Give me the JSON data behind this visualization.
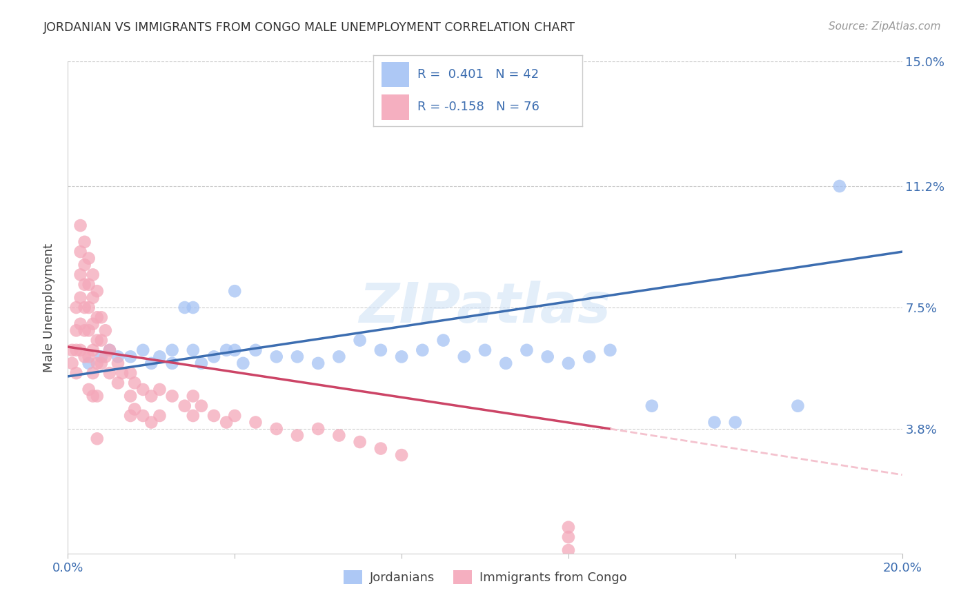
{
  "title": "JORDANIAN VS IMMIGRANTS FROM CONGO MALE UNEMPLOYMENT CORRELATION CHART",
  "source": "Source: ZipAtlas.com",
  "ylabel": "Male Unemployment",
  "xlim": [
    0.0,
    0.2
  ],
  "ylim": [
    0.0,
    0.15
  ],
  "yticks": [
    0.038,
    0.075,
    0.112,
    0.15
  ],
  "ytick_labels": [
    "3.8%",
    "7.5%",
    "11.2%",
    "15.0%"
  ],
  "xticks": [
    0.0,
    0.04,
    0.08,
    0.12,
    0.16,
    0.2
  ],
  "xtick_labels": [
    "0.0%",
    "",
    "",
    "",
    "",
    "20.0%"
  ],
  "blue_color": "#a4c2f4",
  "pink_color": "#f4a7b9",
  "blue_line_color": "#3c6db0",
  "pink_line_color": "#cc4466",
  "pink_dash_color": "#f4c2ce",
  "legend_R_blue": "0.401",
  "legend_N_blue": "42",
  "legend_R_pink": "-0.158",
  "legend_N_pink": "76",
  "legend_label_blue": "Jordanians",
  "legend_label_pink": "Immigrants from Congo",
  "watermark": "ZIPatlas",
  "blue_scatter": [
    [
      0.005,
      0.058
    ],
    [
      0.008,
      0.06
    ],
    [
      0.01,
      0.062
    ],
    [
      0.012,
      0.06
    ],
    [
      0.015,
      0.06
    ],
    [
      0.018,
      0.062
    ],
    [
      0.02,
      0.058
    ],
    [
      0.022,
      0.06
    ],
    [
      0.025,
      0.062
    ],
    [
      0.025,
      0.058
    ],
    [
      0.028,
      0.075
    ],
    [
      0.03,
      0.075
    ],
    [
      0.03,
      0.062
    ],
    [
      0.032,
      0.058
    ],
    [
      0.035,
      0.06
    ],
    [
      0.038,
      0.062
    ],
    [
      0.04,
      0.08
    ],
    [
      0.04,
      0.062
    ],
    [
      0.042,
      0.058
    ],
    [
      0.045,
      0.062
    ],
    [
      0.05,
      0.06
    ],
    [
      0.055,
      0.06
    ],
    [
      0.06,
      0.058
    ],
    [
      0.065,
      0.06
    ],
    [
      0.07,
      0.065
    ],
    [
      0.075,
      0.062
    ],
    [
      0.08,
      0.06
    ],
    [
      0.085,
      0.062
    ],
    [
      0.09,
      0.065
    ],
    [
      0.095,
      0.06
    ],
    [
      0.1,
      0.062
    ],
    [
      0.105,
      0.058
    ],
    [
      0.11,
      0.062
    ],
    [
      0.115,
      0.06
    ],
    [
      0.12,
      0.058
    ],
    [
      0.125,
      0.06
    ],
    [
      0.13,
      0.062
    ],
    [
      0.14,
      0.045
    ],
    [
      0.155,
      0.04
    ],
    [
      0.16,
      0.04
    ],
    [
      0.175,
      0.045
    ],
    [
      0.185,
      0.112
    ]
  ],
  "pink_scatter": [
    [
      0.001,
      0.062
    ],
    [
      0.001,
      0.058
    ],
    [
      0.002,
      0.075
    ],
    [
      0.002,
      0.068
    ],
    [
      0.002,
      0.062
    ],
    [
      0.002,
      0.055
    ],
    [
      0.003,
      0.1
    ],
    [
      0.003,
      0.092
    ],
    [
      0.003,
      0.085
    ],
    [
      0.003,
      0.078
    ],
    [
      0.003,
      0.07
    ],
    [
      0.003,
      0.062
    ],
    [
      0.004,
      0.095
    ],
    [
      0.004,
      0.088
    ],
    [
      0.004,
      0.082
    ],
    [
      0.004,
      0.075
    ],
    [
      0.004,
      0.068
    ],
    [
      0.004,
      0.06
    ],
    [
      0.005,
      0.09
    ],
    [
      0.005,
      0.082
    ],
    [
      0.005,
      0.075
    ],
    [
      0.005,
      0.068
    ],
    [
      0.005,
      0.06
    ],
    [
      0.005,
      0.05
    ],
    [
      0.006,
      0.085
    ],
    [
      0.006,
      0.078
    ],
    [
      0.006,
      0.07
    ],
    [
      0.006,
      0.062
    ],
    [
      0.006,
      0.055
    ],
    [
      0.006,
      0.048
    ],
    [
      0.007,
      0.08
    ],
    [
      0.007,
      0.072
    ],
    [
      0.007,
      0.065
    ],
    [
      0.007,
      0.058
    ],
    [
      0.007,
      0.048
    ],
    [
      0.007,
      0.035
    ],
    [
      0.008,
      0.072
    ],
    [
      0.008,
      0.065
    ],
    [
      0.008,
      0.058
    ],
    [
      0.009,
      0.068
    ],
    [
      0.009,
      0.06
    ],
    [
      0.01,
      0.062
    ],
    [
      0.01,
      0.055
    ],
    [
      0.012,
      0.058
    ],
    [
      0.012,
      0.052
    ],
    [
      0.013,
      0.055
    ],
    [
      0.015,
      0.055
    ],
    [
      0.015,
      0.048
    ],
    [
      0.015,
      0.042
    ],
    [
      0.016,
      0.052
    ],
    [
      0.016,
      0.044
    ],
    [
      0.018,
      0.05
    ],
    [
      0.018,
      0.042
    ],
    [
      0.02,
      0.048
    ],
    [
      0.02,
      0.04
    ],
    [
      0.022,
      0.05
    ],
    [
      0.022,
      0.042
    ],
    [
      0.025,
      0.048
    ],
    [
      0.028,
      0.045
    ],
    [
      0.03,
      0.048
    ],
    [
      0.03,
      0.042
    ],
    [
      0.032,
      0.045
    ],
    [
      0.035,
      0.042
    ],
    [
      0.038,
      0.04
    ],
    [
      0.04,
      0.042
    ],
    [
      0.045,
      0.04
    ],
    [
      0.05,
      0.038
    ],
    [
      0.055,
      0.036
    ],
    [
      0.06,
      0.038
    ],
    [
      0.065,
      0.036
    ],
    [
      0.07,
      0.034
    ],
    [
      0.075,
      0.032
    ],
    [
      0.08,
      0.03
    ],
    [
      0.12,
      0.008
    ],
    [
      0.12,
      0.005
    ],
    [
      0.12,
      0.001
    ]
  ],
  "blue_line": [
    [
      0.0,
      0.054
    ],
    [
      0.2,
      0.092
    ]
  ],
  "pink_line": [
    [
      0.0,
      0.063
    ],
    [
      0.13,
      0.038
    ]
  ],
  "pink_dash_line": [
    [
      0.13,
      0.038
    ],
    [
      0.2,
      0.024
    ]
  ]
}
